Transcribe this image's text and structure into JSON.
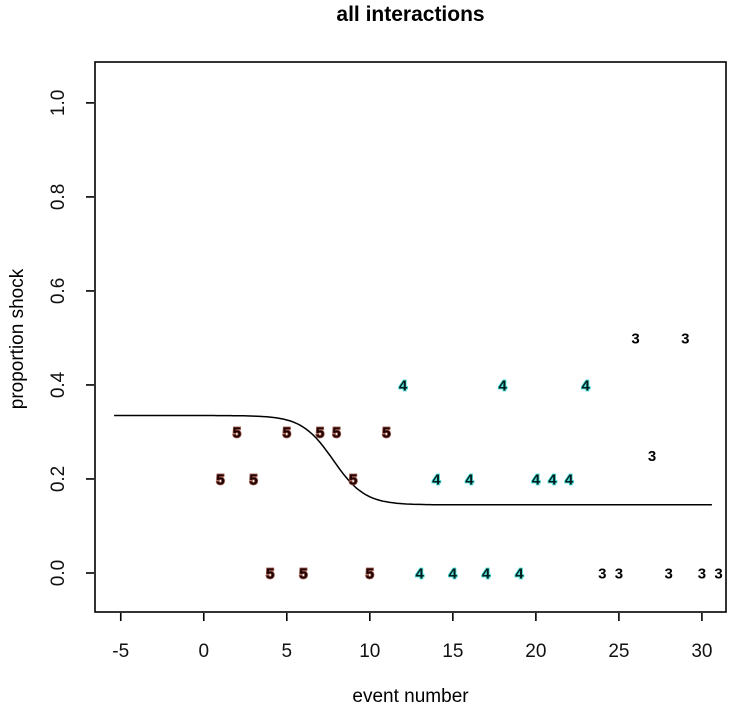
{
  "title": "all interactions",
  "chart_data": {
    "type": "scatter",
    "title": "all interactions",
    "xlabel": "event number",
    "ylabel": "proportion shock",
    "xlim": [
      -6.55,
      31.45
    ],
    "ylim": [
      -0.083,
      1.087
    ],
    "grid": false,
    "legend": "none",
    "marker_style": "group-number-text-labels",
    "x_ticks": [
      {
        "v": -5,
        "label": "-5"
      },
      {
        "v": 0,
        "label": "0"
      },
      {
        "v": 5,
        "label": "5"
      },
      {
        "v": 10,
        "label": "10"
      },
      {
        "v": 15,
        "label": "15"
      },
      {
        "v": 20,
        "label": "20"
      },
      {
        "v": 25,
        "label": "25"
      },
      {
        "v": 30,
        "label": "30"
      }
    ],
    "y_ticks": [
      {
        "v": 0.0,
        "label": "0.0"
      },
      {
        "v": 0.2,
        "label": "0.2"
      },
      {
        "v": 0.4,
        "label": "0.4"
      },
      {
        "v": 0.6,
        "label": "0.6"
      },
      {
        "v": 0.8,
        "label": "0.8"
      },
      {
        "v": 1.0,
        "label": "1.0"
      }
    ],
    "series": [
      {
        "name": "group-5",
        "label": "5",
        "text_color": "#1c0202",
        "halo_color": "#8f4a3c",
        "points": [
          [
            1,
            0.2
          ],
          [
            2,
            0.3
          ],
          [
            3,
            0.2
          ],
          [
            4,
            0.0
          ],
          [
            5,
            0.3
          ],
          [
            6,
            0.0
          ],
          [
            7,
            0.3
          ],
          [
            8,
            0.3
          ],
          [
            9,
            0.2
          ],
          [
            10,
            0.0
          ],
          [
            11,
            0.3
          ]
        ]
      },
      {
        "name": "group-4",
        "label": "4",
        "text_color": "#031c1c",
        "halo_color": "#49dbd4",
        "points": [
          [
            12,
            0.4
          ],
          [
            13,
            0.0
          ],
          [
            14,
            0.2
          ],
          [
            15,
            0.0
          ],
          [
            16,
            0.2
          ],
          [
            17,
            0.0
          ],
          [
            18,
            0.4
          ],
          [
            19,
            0.0
          ],
          [
            20,
            0.2
          ],
          [
            21,
            0.2
          ],
          [
            22,
            0.2
          ],
          [
            23,
            0.4
          ]
        ]
      },
      {
        "name": "group-3",
        "label": "3",
        "text_color": "#000000",
        "halo_color": "none",
        "points": [
          [
            24,
            0.0
          ],
          [
            25,
            0.0
          ],
          [
            26,
            0.5
          ],
          [
            27,
            0.25
          ],
          [
            28,
            0.0
          ],
          [
            29,
            0.5
          ],
          [
            30,
            0.0
          ],
          [
            31,
            0.0
          ]
        ]
      }
    ],
    "curve": {
      "name": "logistic-fit",
      "upper": 0.335,
      "lower": 0.145,
      "midpoint": 7.8,
      "scale": 0.95,
      "x_start": -5.4,
      "x_end": 30.6,
      "color": "#000000"
    }
  },
  "colors": {
    "background": "#ffffff",
    "axis": "#000000",
    "tick_label": "#111111"
  }
}
